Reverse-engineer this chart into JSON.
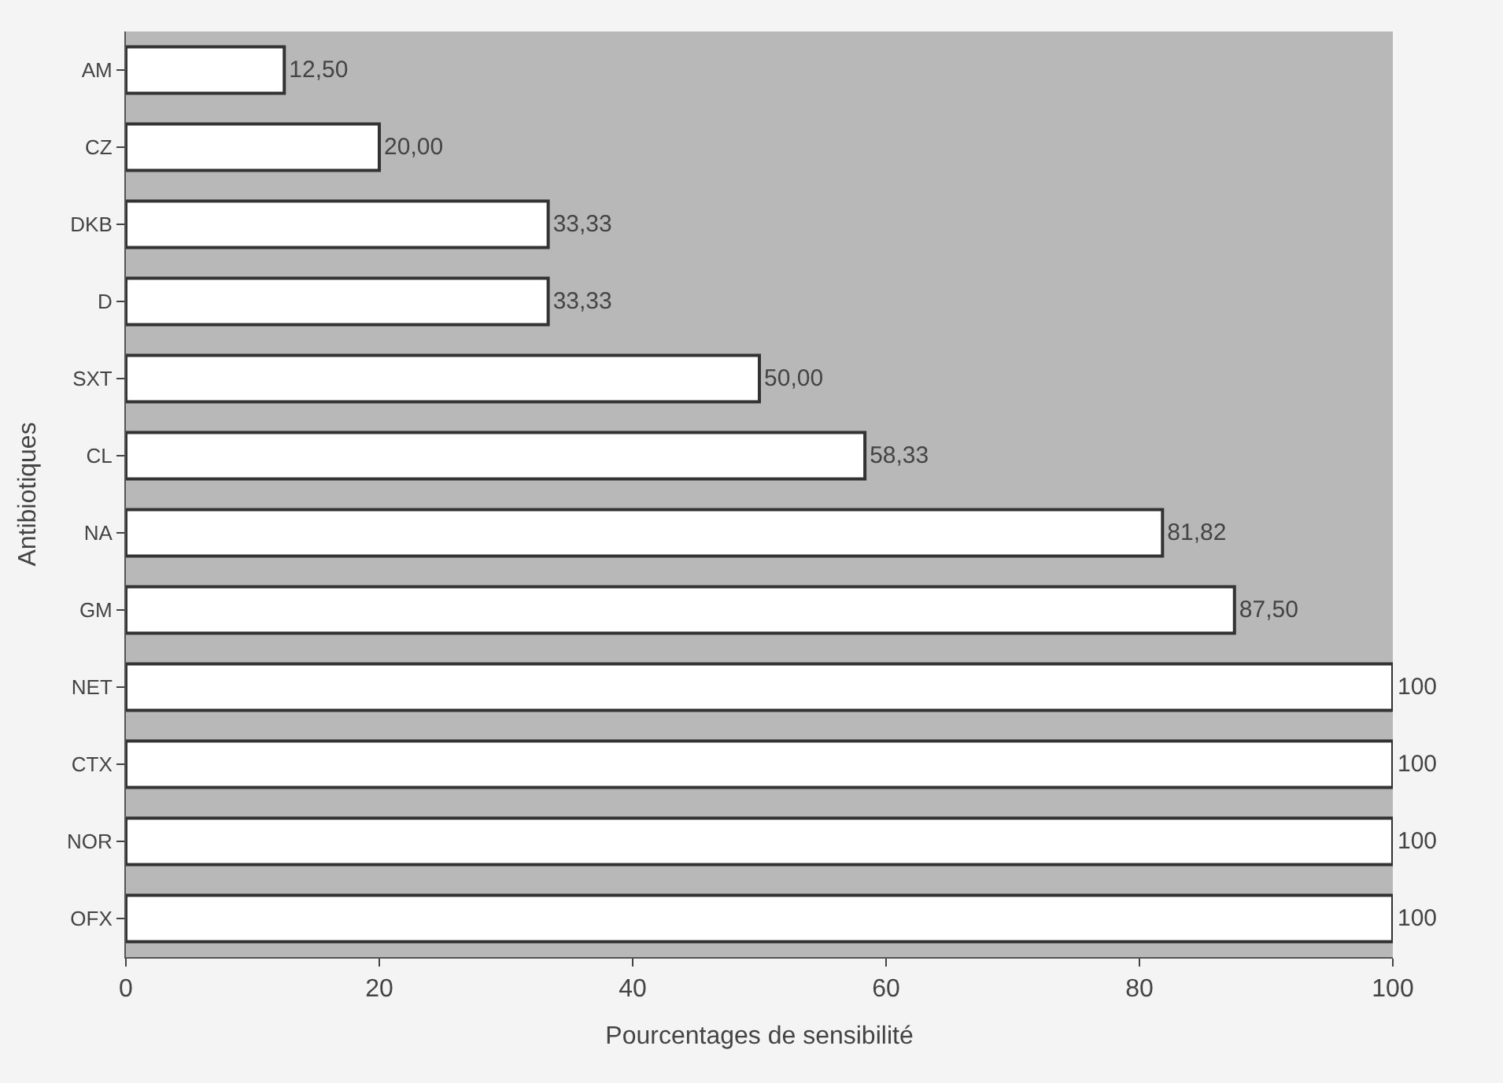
{
  "chart_data": {
    "type": "bar",
    "orientation": "horizontal",
    "xlabel": "Pourcentages de sensibilité",
    "ylabel": "Antibiotiques",
    "categories": [
      "AM",
      "CZ",
      "DKB",
      "D",
      "SXT",
      "CL",
      "NA",
      "GM",
      "NET",
      "CTX",
      "NOR",
      "OFX"
    ],
    "values": [
      12.5,
      20.0,
      33.33,
      33.33,
      50.0,
      58.33,
      81.82,
      87.5,
      100,
      100,
      100,
      100
    ],
    "value_labels": [
      "12,50",
      "20,00",
      "33,33",
      "33,33",
      "50,00",
      "58,33",
      "81,82",
      "87,50",
      "100",
      "100",
      "100",
      "100"
    ],
    "color": "#ffffff",
    "xlim": [
      0,
      100
    ],
    "xticks": [
      0,
      20,
      40,
      60,
      80,
      100
    ],
    "grid": false,
    "legend": false
  }
}
